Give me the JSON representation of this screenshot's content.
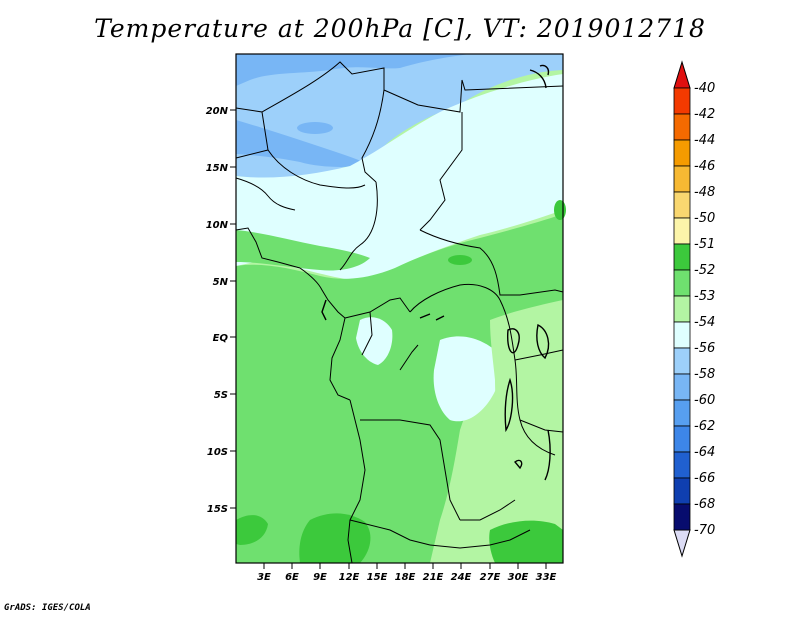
{
  "title": "Temperature at 200hPa [C], VT: 2019012718",
  "credit": "GrADS: IGES/COLA",
  "map": {
    "lat_ticks": [
      "20N",
      "15N",
      "10N",
      "5N",
      "EQ",
      "5S",
      "10S",
      "15S"
    ],
    "lon_ticks": [
      "3E",
      "6E",
      "9E",
      "12E",
      "15E",
      "18E",
      "21E",
      "24E",
      "27E",
      "30E",
      "33E"
    ]
  },
  "colorbar": {
    "labels": [
      "-40",
      "-42",
      "-44",
      "-46",
      "-48",
      "-50",
      "-51",
      "-52",
      "-53",
      "-54",
      "-56",
      "-58",
      "-60",
      "-62",
      "-64",
      "-66",
      "-68",
      "-70"
    ],
    "colors": [
      "#f33a00",
      "#f56a00",
      "#f59b00",
      "#f7b933",
      "#f9d770",
      "#fcf5aa",
      "#3cc93c",
      "#6fe06f",
      "#b3f5a3",
      "#dfffff",
      "#9dd0fa",
      "#78b6f5",
      "#579ff0",
      "#3d86e8",
      "#2060d0",
      "#0f3fb0",
      "#070c6e"
    ],
    "top_arrow_color": "#e01010",
    "bottom_arrow_color": "#dcdcf5"
  },
  "legend_colors": {
    "green_dark": "#3cc93c",
    "green_mid": "#6fe06f",
    "green_light": "#b3f5a3",
    "cyan_pale": "#dfffff",
    "blue_light": "#9dd0fa",
    "blue_mid": "#78b6f5"
  }
}
